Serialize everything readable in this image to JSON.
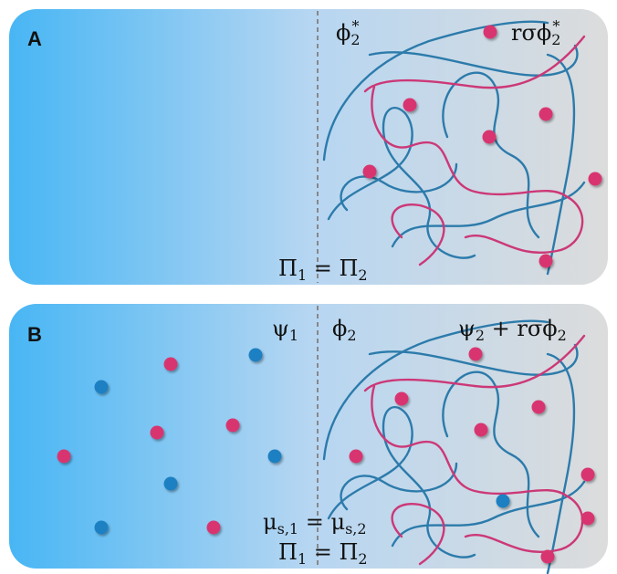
{
  "panels": [
    {
      "letter": "A",
      "labels": [
        [
          {
            "main": "ϕ"
          },
          {
            "sub": "2"
          },
          {
            "sup": "*"
          }
        ],
        [
          {
            "main": "rσϕ"
          },
          {
            "sub": "2"
          },
          {
            "sup": "*"
          }
        ],
        [
          {
            "main": "Π"
          },
          {
            "sub": "1"
          },
          {
            "main": " = Π"
          },
          {
            "sub": "2"
          }
        ]
      ]
    },
    {
      "letter": "B",
      "labels": [
        [
          {
            "main": "ψ"
          },
          {
            "sub": "1"
          }
        ],
        [
          {
            "main": "ϕ"
          },
          {
            "sub": "2"
          }
        ],
        [
          {
            "main": "ψ"
          },
          {
            "sub": "2"
          },
          {
            "main": " + rσϕ"
          },
          {
            "sub": "2"
          }
        ],
        [
          {
            "main": "μ"
          },
          {
            "sub": "s,1"
          },
          {
            "main": " = μ"
          },
          {
            "sub": "s,2"
          }
        ],
        [
          {
            "main": "Π"
          },
          {
            "sub": "1"
          },
          {
            "main": " = Π"
          },
          {
            "sub": "2"
          }
        ]
      ]
    }
  ]
}
